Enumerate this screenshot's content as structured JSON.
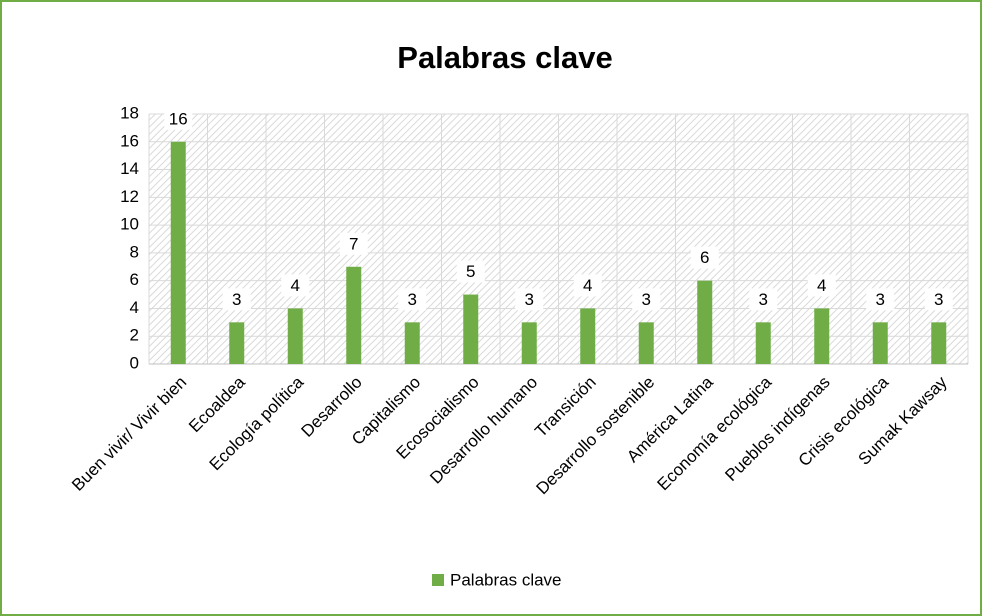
{
  "chart_data": {
    "type": "bar",
    "title": "Palabras clave",
    "categories": [
      "Buen vivir/ Vivir bien",
      "Ecoaldea",
      "Ecología política",
      "Desarrollo",
      "Capitalismo",
      "Ecosocialismo",
      "Desarrollo humano",
      "Transición",
      "Desarrollo sostenible",
      "América Latina",
      "Economía ecológica",
      "Pueblos indígenas",
      "Crisis ecológica",
      "Sumak Kawsay"
    ],
    "series": [
      {
        "name": "Palabras clave",
        "color": "#70ad47",
        "values": [
          16,
          3,
          4,
          7,
          3,
          5,
          3,
          4,
          3,
          6,
          3,
          4,
          3,
          3
        ]
      }
    ],
    "ylim": [
      0,
      18
    ],
    "yticks": [
      0,
      2,
      4,
      6,
      8,
      10,
      12,
      14,
      16,
      18
    ],
    "grid": true,
    "legend": "bottom"
  }
}
